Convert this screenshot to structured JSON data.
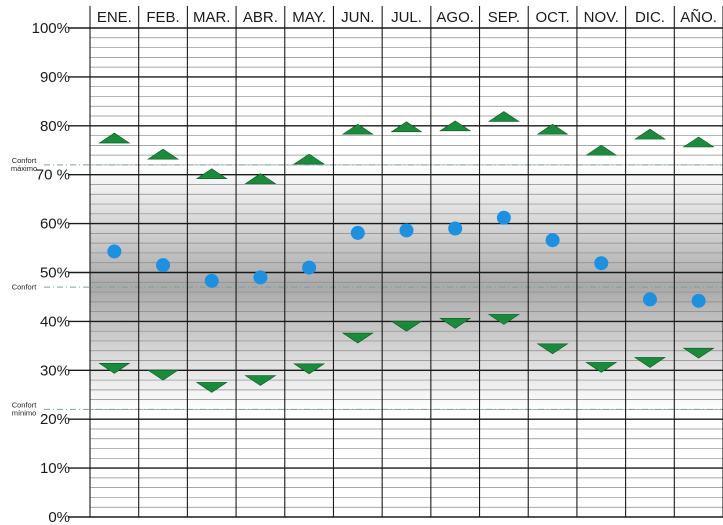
{
  "chart_data": {
    "type": "scatter",
    "categories": [
      "ENE.",
      "FEB.",
      "MAR.",
      "ABR.",
      "MAY.",
      "JUN.",
      "JUL.",
      "AGO.",
      "SEP.",
      "OCT.",
      "NOV.",
      "DIC.",
      "AÑO."
    ],
    "y_tick_labels": [
      "0%",
      "10%",
      "20%",
      "30%",
      "40%",
      "50%",
      "60%",
      "70 %",
      "80%",
      "90%",
      "100%"
    ],
    "ylim": [
      0,
      100
    ],
    "series": [
      {
        "values": [
          77.5,
          74.2,
          70.2,
          69.2,
          73.2,
          79.3,
          79.8,
          80.0,
          81.9,
          79.3,
          75.0,
          78.3,
          76.7
        ]
      },
      {
        "values": [
          54.3,
          51.5,
          48.3,
          49.0,
          51.0,
          58.1,
          58.6,
          59.0,
          61.2,
          56.6,
          51.9,
          44.5,
          44.2
        ]
      },
      {
        "values": [
          30.4,
          29.0,
          26.5,
          27.9,
          30.3,
          36.6,
          39.0,
          39.6,
          40.4,
          34.4,
          30.6,
          31.6,
          33.5
        ]
      }
    ],
    "reference_lines": [
      {
        "label_lines": [
          "Confort",
          "máximo"
        ],
        "value": 72.0
      },
      {
        "label_lines": [
          "Confort"
        ],
        "value": 47.0
      },
      {
        "label_lines": [
          "Confort",
          "mínimo"
        ],
        "value": 22.0
      }
    ],
    "shaded_band": [
      22,
      72
    ],
    "colors": {
      "upper": "#1a8a3c",
      "mean": "#1e90e0",
      "lower": "#1a8a3c",
      "grid_major": "#1a1a1a",
      "grid_minor": "#8a8a8a",
      "reference": "#7aa0a0"
    }
  }
}
